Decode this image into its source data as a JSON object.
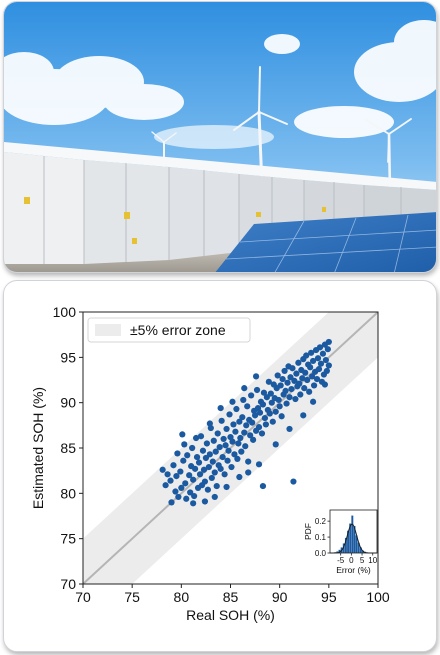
{
  "photo": {
    "subject": "battery-energy-storage-wind-solar-photo"
  },
  "colors": {
    "points": "#1b5aa0",
    "zone": "#ececec",
    "diagonal": "#b5b5b5",
    "hist": "#1b5aa0",
    "curve": "#1a1a1a"
  },
  "chart_data": [
    {
      "type": "scatter",
      "title": "",
      "xlabel": "Real SOH (%)",
      "ylabel": "Estimated SOH (%)",
      "xlim": [
        70,
        100
      ],
      "ylim": [
        70,
        100
      ],
      "xticks": [
        70,
        75,
        80,
        85,
        90,
        95,
        100
      ],
      "yticks": [
        70,
        75,
        80,
        85,
        90,
        95,
        100
      ],
      "grid": false,
      "legend": {
        "placement": "top-left",
        "entries": [
          "±5% error zone"
        ]
      },
      "reference_line": {
        "from": [
          70,
          70
        ],
        "to": [
          100,
          100
        ]
      },
      "error_zone": {
        "band": 5
      },
      "x_range_of_points": [
        78,
        95
      ],
      "points": [
        [
          78.1,
          82.6
        ],
        [
          78.4,
          80.9
        ],
        [
          78.6,
          82.1
        ],
        [
          78.9,
          81.4
        ],
        [
          79.0,
          79.0
        ],
        [
          79.2,
          83.1
        ],
        [
          79.4,
          80.2
        ],
        [
          79.5,
          81.9
        ],
        [
          79.7,
          79.6
        ],
        [
          79.9,
          82.4
        ],
        [
          80.0,
          80.6
        ],
        [
          80.1,
          86.5
        ],
        [
          80.2,
          83.6
        ],
        [
          80.4,
          81.1
        ],
        [
          80.5,
          79.4
        ],
        [
          80.6,
          84.2
        ],
        [
          80.8,
          82.0
        ],
        [
          80.9,
          80.1
        ],
        [
          81.0,
          83.0
        ],
        [
          81.1,
          85.0
        ],
        [
          81.2,
          81.5
        ],
        [
          81.3,
          79.7
        ],
        [
          81.4,
          82.7
        ],
        [
          81.6,
          84.0
        ],
        [
          81.7,
          80.6
        ],
        [
          81.8,
          83.4
        ],
        [
          81.9,
          82.1
        ],
        [
          82.0,
          86.3
        ],
        [
          82.1,
          80.9
        ],
        [
          82.2,
          84.7
        ],
        [
          82.3,
          82.6
        ],
        [
          82.4,
          81.3
        ],
        [
          82.5,
          83.9
        ],
        [
          82.6,
          85.5
        ],
        [
          82.7,
          80.4
        ],
        [
          82.8,
          82.9
        ],
        [
          82.9,
          84.3
        ],
        [
          83.0,
          87.2
        ],
        [
          83.1,
          81.7
        ],
        [
          83.2,
          83.5
        ],
        [
          83.3,
          85.8
        ],
        [
          83.4,
          82.3
        ],
        [
          83.5,
          84.6
        ],
        [
          83.6,
          80.8
        ],
        [
          83.7,
          86.6
        ],
        [
          83.8,
          83.1
        ],
        [
          83.9,
          85.1
        ],
        [
          84.0,
          82.7
        ],
        [
          84.1,
          88.0
        ],
        [
          84.2,
          84.0
        ],
        [
          84.3,
          86.0
        ],
        [
          84.4,
          82.1
        ],
        [
          84.5,
          85.3
        ],
        [
          84.6,
          87.1
        ],
        [
          84.7,
          83.6
        ],
        [
          84.8,
          84.7
        ],
        [
          84.9,
          88.7
        ],
        [
          85.0,
          86.2
        ],
        [
          85.1,
          82.9
        ],
        [
          85.2,
          85.7
        ],
        [
          85.3,
          87.6
        ],
        [
          85.4,
          84.3
        ],
        [
          85.5,
          86.8
        ],
        [
          85.6,
          89.3
        ],
        [
          85.7,
          83.8
        ],
        [
          85.8,
          85.5
        ],
        [
          85.9,
          87.9
        ],
        [
          86.0,
          86.1
        ],
        [
          86.1,
          84.6
        ],
        [
          86.2,
          88.4
        ],
        [
          86.3,
          90.3
        ],
        [
          86.4,
          86.7
        ],
        [
          86.5,
          85.2
        ],
        [
          86.6,
          87.5
        ],
        [
          86.7,
          89.6
        ],
        [
          86.8,
          83.5
        ],
        [
          86.9,
          88.1
        ],
        [
          87.0,
          86.4
        ],
        [
          87.1,
          90.8
        ],
        [
          87.2,
          87.8
        ],
        [
          87.3,
          85.9
        ],
        [
          87.4,
          89.1
        ],
        [
          87.5,
          88.6
        ],
        [
          87.6,
          86.9
        ],
        [
          87.7,
          91.4
        ],
        [
          87.8,
          89.4
        ],
        [
          87.9,
          87.3
        ],
        [
          88.0,
          88.9
        ],
        [
          88.1,
          90.1
        ],
        [
          88.2,
          86.6
        ],
        [
          88.3,
          89.8
        ],
        [
          88.4,
          91.1
        ],
        [
          88.5,
          88.3
        ],
        [
          88.6,
          87.6
        ],
        [
          88.7,
          90.6
        ],
        [
          88.8,
          89.2
        ],
        [
          88.9,
          92.3
        ],
        [
          89.0,
          88.8
        ],
        [
          89.1,
          91.0
        ],
        [
          89.2,
          90.0
        ],
        [
          89.3,
          87.9
        ],
        [
          89.4,
          92.0
        ],
        [
          89.5,
          90.5
        ],
        [
          89.6,
          89.0
        ],
        [
          89.7,
          91.6
        ],
        [
          89.8,
          93.0
        ],
        [
          89.9,
          90.3
        ],
        [
          90.0,
          89.6
        ],
        [
          90.1,
          91.9
        ],
        [
          90.2,
          88.5
        ],
        [
          90.3,
          92.6
        ],
        [
          90.4,
          90.9
        ],
        [
          90.5,
          93.5
        ],
        [
          90.6,
          91.3
        ],
        [
          90.7,
          89.9
        ],
        [
          90.8,
          92.2
        ],
        [
          90.9,
          94.0
        ],
        [
          91.0,
          90.6
        ],
        [
          91.1,
          92.8
        ],
        [
          91.2,
          91.5
        ],
        [
          91.3,
          93.8
        ],
        [
          91.4,
          81.3
        ],
        [
          91.5,
          92.4
        ],
        [
          91.6,
          90.4
        ],
        [
          91.7,
          93.2
        ],
        [
          91.8,
          91.8
        ],
        [
          91.9,
          94.4
        ],
        [
          92.0,
          92.1
        ],
        [
          92.1,
          90.9
        ],
        [
          92.2,
          93.6
        ],
        [
          92.3,
          92.7
        ],
        [
          92.4,
          94.8
        ],
        [
          92.5,
          91.6
        ],
        [
          92.6,
          93.3
        ],
        [
          92.7,
          95.2
        ],
        [
          92.8,
          92.5
        ],
        [
          92.9,
          94.2
        ],
        [
          93.0,
          91.2
        ],
        [
          93.1,
          93.9
        ],
        [
          93.2,
          95.5
        ],
        [
          93.3,
          92.9
        ],
        [
          93.4,
          94.6
        ],
        [
          93.5,
          91.9
        ],
        [
          93.6,
          93.4
        ],
        [
          93.7,
          95.8
        ],
        [
          93.8,
          92.6
        ],
        [
          93.9,
          94.9
        ],
        [
          94.0,
          93.7
        ],
        [
          94.1,
          96.1
        ],
        [
          94.2,
          94.3
        ],
        [
          94.3,
          92.3
        ],
        [
          94.4,
          95.4
        ],
        [
          94.5,
          93.1
        ],
        [
          94.6,
          96.4
        ],
        [
          94.7,
          94.7
        ],
        [
          94.8,
          93.5
        ],
        [
          94.9,
          95.9
        ],
        [
          95.0,
          96.7
        ],
        [
          95.0,
          94.1
        ],
        [
          94.6,
          92.0
        ],
        [
          79.6,
          84.4
        ],
        [
          80.3,
          85.4
        ],
        [
          81.5,
          86.1
        ],
        [
          82.9,
          87.7
        ],
        [
          84.0,
          89.4
        ],
        [
          85.2,
          90.1
        ],
        [
          86.4,
          91.6
        ],
        [
          87.6,
          92.9
        ],
        [
          81.2,
          78.9
        ],
        [
          83.4,
          79.6
        ],
        [
          85.9,
          81.8
        ],
        [
          87.9,
          83.2
        ],
        [
          89.6,
          85.4
        ],
        [
          88.3,
          80.8
        ],
        [
          86.8,
          82.3
        ],
        [
          91.0,
          87.1
        ],
        [
          92.4,
          88.6
        ],
        [
          93.4,
          90.1
        ],
        [
          84.6,
          80.7
        ],
        [
          82.4,
          79.1
        ]
      ]
    },
    {
      "type": "histogram",
      "title": "",
      "xlabel": "Error (%)",
      "ylabel": "PDF",
      "xlim": [
        -10,
        12
      ],
      "ylim": [
        0,
        0.27
      ],
      "xticks": [
        -5,
        0,
        5,
        10
      ],
      "yticks": [
        0.0,
        0.1,
        0.2
      ],
      "bins": [
        {
          "x0": -8,
          "x1": -7,
          "density": 0.005
        },
        {
          "x0": -7,
          "x1": -6,
          "density": 0.01
        },
        {
          "x0": -6,
          "x1": -5,
          "density": 0.02
        },
        {
          "x0": -5,
          "x1": -4,
          "density": 0.035
        },
        {
          "x0": -4,
          "x1": -3,
          "density": 0.06
        },
        {
          "x0": -3,
          "x1": -2,
          "density": 0.095
        },
        {
          "x0": -2,
          "x1": -1,
          "density": 0.14
        },
        {
          "x0": -1,
          "x1": 0,
          "density": 0.185
        },
        {
          "x0": 0,
          "x1": 1,
          "density": 0.235
        },
        {
          "x0": 1,
          "x1": 2,
          "density": 0.17
        },
        {
          "x0": 2,
          "x1": 3,
          "density": 0.11
        },
        {
          "x0": 3,
          "x1": 4,
          "density": 0.065
        },
        {
          "x0": 4,
          "x1": 5,
          "density": 0.035
        },
        {
          "x0": 5,
          "x1": 6,
          "density": 0.015
        },
        {
          "x0": 6,
          "x1": 7,
          "density": 0.008
        },
        {
          "x0": 7,
          "x1": 8,
          "density": 0.004
        }
      ],
      "fit_curve": {
        "type": "normal",
        "mean": 0.3,
        "std": 2.2
      }
    }
  ]
}
